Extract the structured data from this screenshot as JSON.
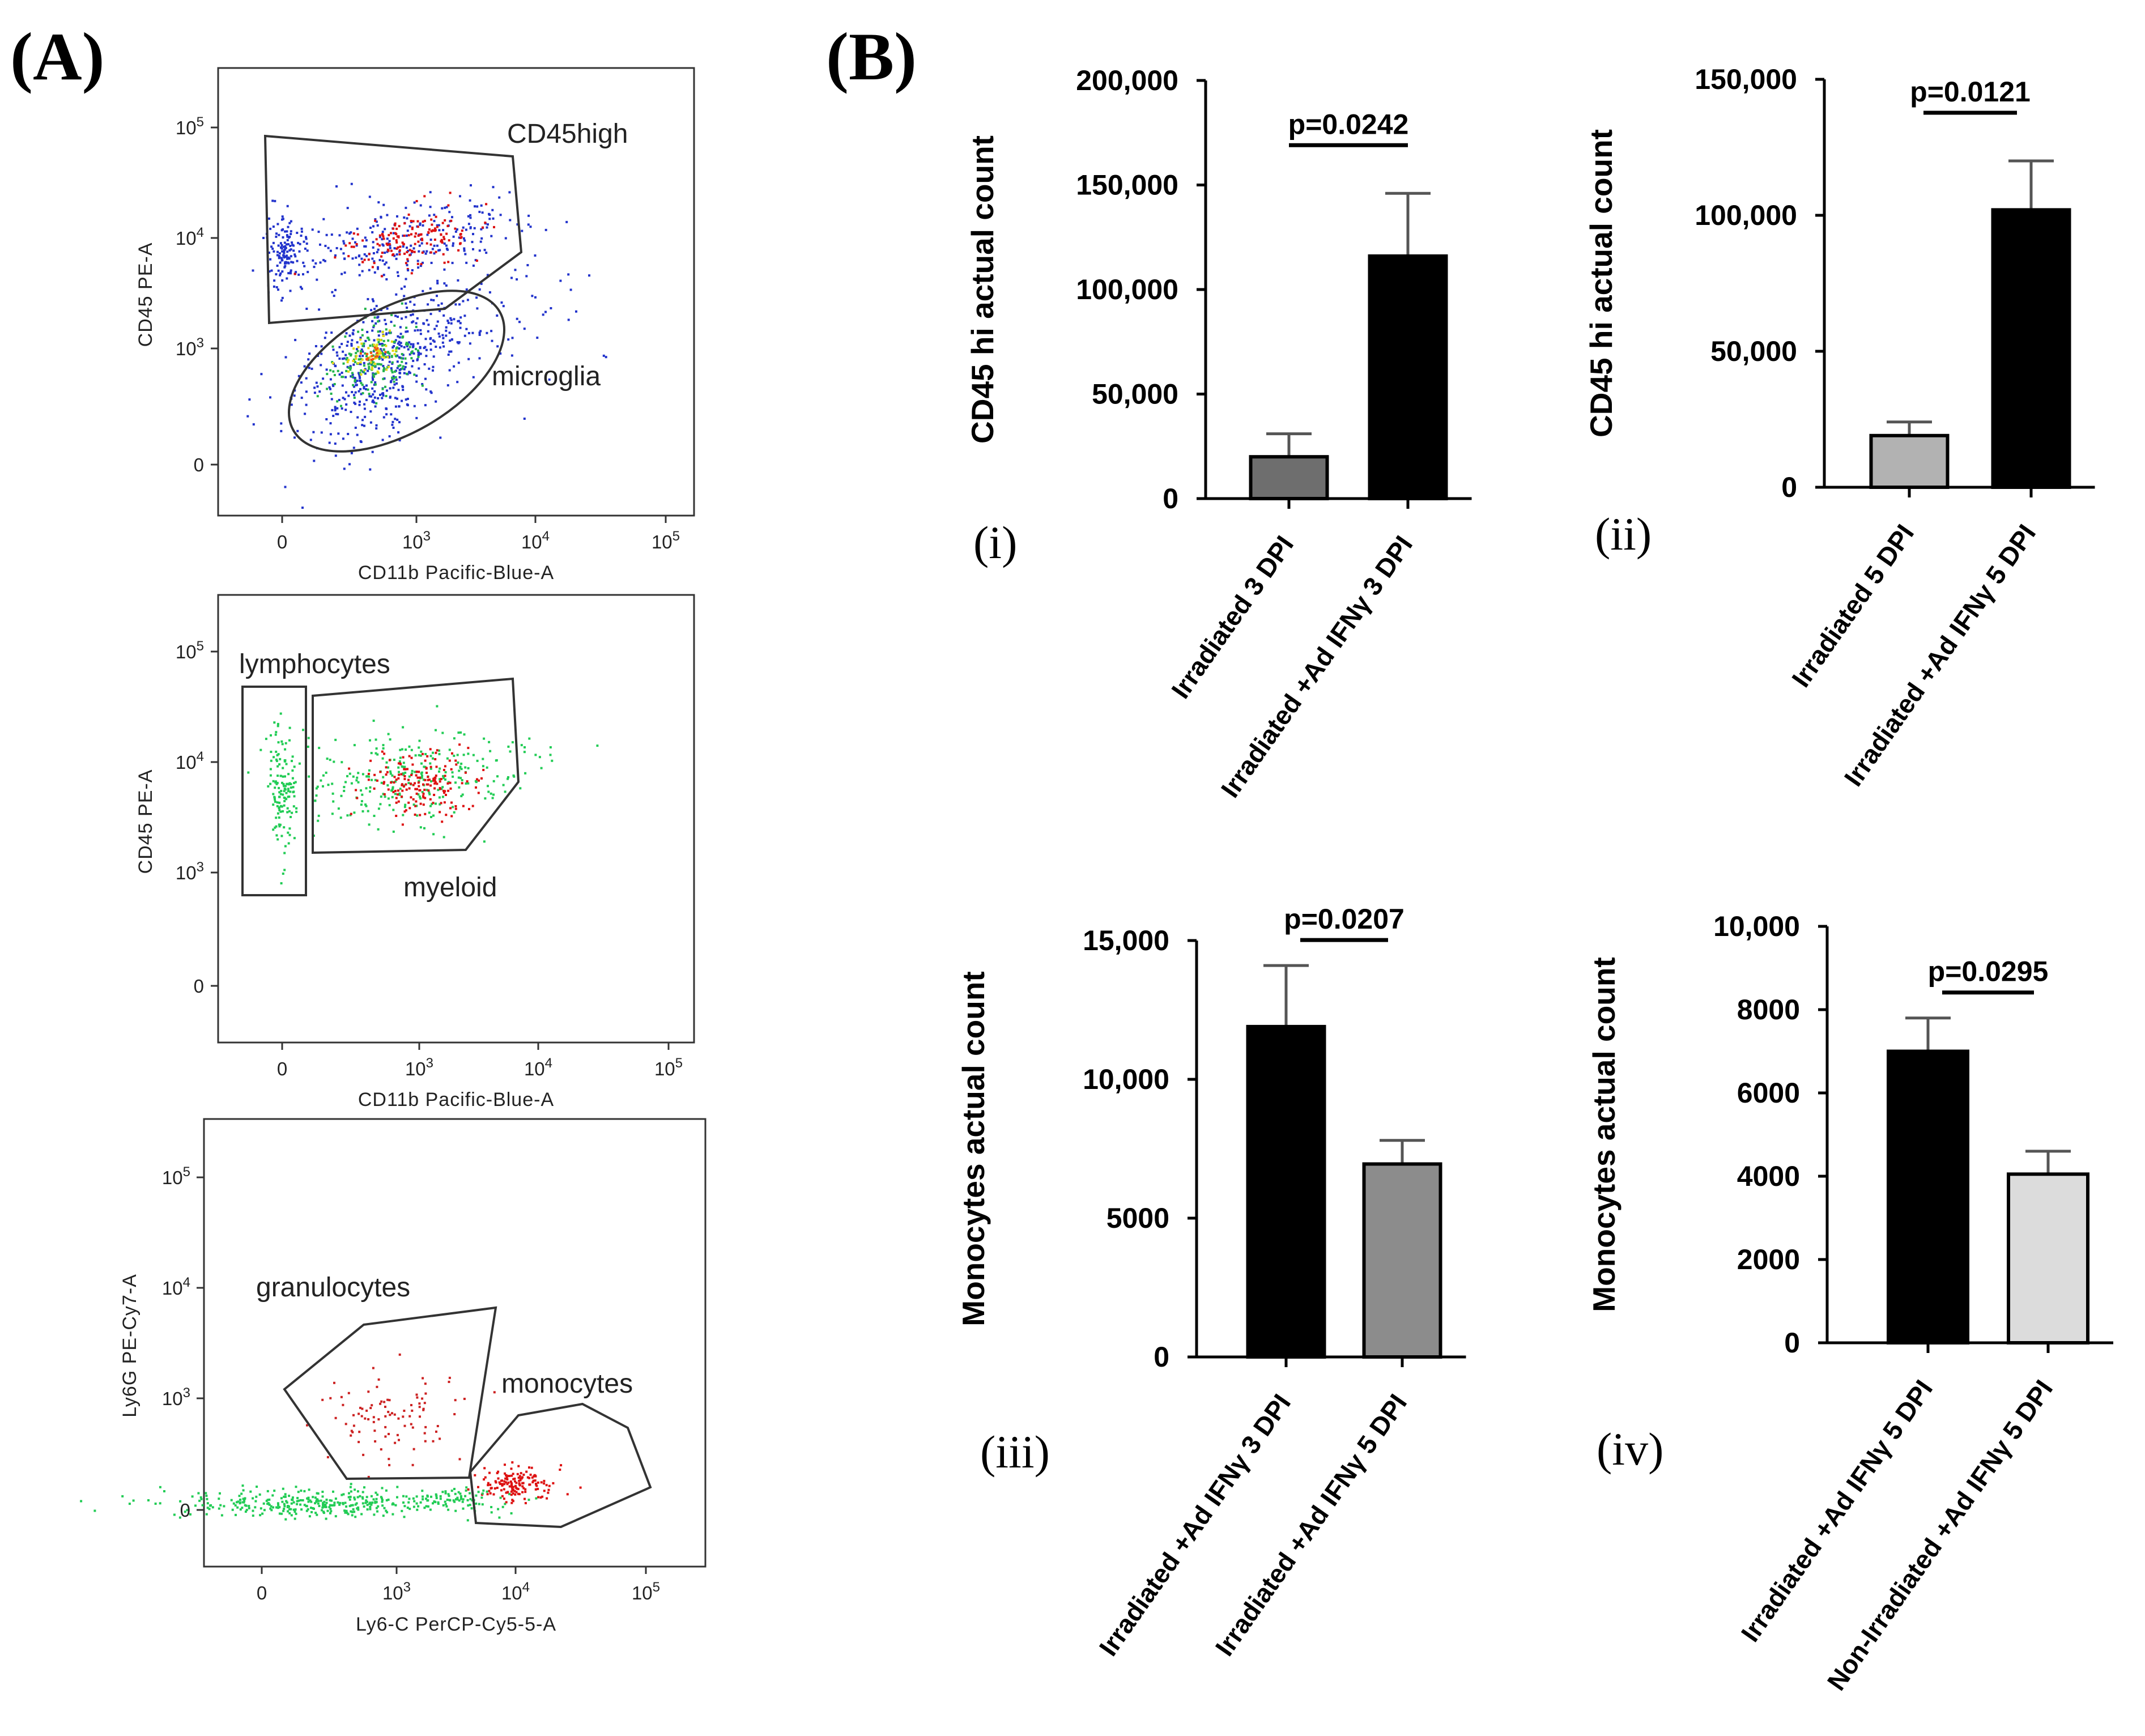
{
  "labels": {
    "panel_a": "(A)",
    "panel_b": "(B)"
  },
  "facs": [
    {
      "id": "plot1",
      "y_axis": "CD45 PE-A",
      "x_axis": "CD11b Pacific-Blue-A",
      "y_ticks": [
        "10^5",
        "10^4",
        "10^3",
        "0"
      ],
      "x_ticks": [
        "0",
        "10^3",
        "10^4",
        "10^5"
      ],
      "gates": [
        "CD45high",
        "microglia"
      ]
    },
    {
      "id": "plot2",
      "y_axis": "CD45 PE-A",
      "x_axis": "CD11b Pacific-Blue-A",
      "y_ticks": [
        "10^5",
        "10^4",
        "10^3",
        "0"
      ],
      "x_ticks": [
        "0",
        "10^3",
        "10^4",
        "10^5"
      ],
      "gates": [
        "lymphocytes",
        "myeloid"
      ]
    },
    {
      "id": "plot3",
      "y_axis": "Ly6G PE-Cy7-A",
      "x_axis": "Ly6-C PerCP-Cy5-5-A",
      "y_ticks": [
        "10^5",
        "10^4",
        "10^3",
        "0"
      ],
      "x_ticks": [
        "0",
        "10^3",
        "10^4",
        "10^5"
      ],
      "gates": [
        "granulocytes",
        "monocytes"
      ]
    }
  ],
  "chart_data": [
    {
      "type": "bar",
      "panel": "(i)",
      "ylabel": "CD45 hi actual count",
      "categories": [
        "Irradiated 3 DPI",
        "Irradiated +Ad IFNγ 3 DPI"
      ],
      "values": [
        20000,
        116000
      ],
      "errors": [
        11000,
        30000
      ],
      "colors": [
        "#6e6e6e",
        "#000000"
      ],
      "ylim": [
        0,
        200000
      ],
      "yticks": [
        0,
        50000,
        100000,
        150000,
        200000
      ],
      "ytick_labels": [
        "0",
        "50,000",
        "100,000",
        "150,000",
        "200,000"
      ],
      "pvalue": "p=0.0242"
    },
    {
      "type": "bar",
      "panel": "(ii)",
      "ylabel": "CD45 hi actual count",
      "categories": [
        "Irradiated 5 DPI",
        "Irradiated +Ad IFNγ 5 DPI"
      ],
      "values": [
        19000,
        102000
      ],
      "errors": [
        5000,
        18000
      ],
      "colors": [
        "#b2b2b2",
        "#000000"
      ],
      "ylim": [
        0,
        150000
      ],
      "yticks": [
        0,
        50000,
        100000,
        150000
      ],
      "ytick_labels": [
        "0",
        "50,000",
        "100,000",
        "150,000"
      ],
      "pvalue": "p=0.0121"
    },
    {
      "type": "bar",
      "panel": "(iii)",
      "ylabel": "Monocytes actual count",
      "categories": [
        "Irradiated +Ad IFNγ 3 DPI",
        "Irradiated +Ad IFNγ 5 DPI"
      ],
      "values": [
        11900,
        6950
      ],
      "errors": [
        2200,
        850
      ],
      "colors": [
        "#000000",
        "#8c8c8c"
      ],
      "ylim": [
        0,
        15000
      ],
      "yticks": [
        0,
        5000,
        10000,
        15000
      ],
      "ytick_labels": [
        "0",
        "5000",
        "10,000",
        "15,000"
      ],
      "pvalue": "p=0.0207"
    },
    {
      "type": "bar",
      "panel": "(iv)",
      "ylabel": "Monocytes actual count",
      "categories": [
        "Irradiated +Ad IFNγ 5 DPI",
        "Non-Irradiated +Ad IFNγ 5 DPI"
      ],
      "values": [
        7000,
        4050
      ],
      "errors": [
        800,
        550
      ],
      "colors": [
        "#000000",
        "#dcdcdc"
      ],
      "ylim": [
        0,
        10000
      ],
      "yticks": [
        0,
        2000,
        4000,
        6000,
        8000,
        10000
      ],
      "ytick_labels": [
        "0",
        "2000",
        "4000",
        "6000",
        "8000",
        "10,000"
      ],
      "pvalue": "p=0.0295"
    }
  ]
}
